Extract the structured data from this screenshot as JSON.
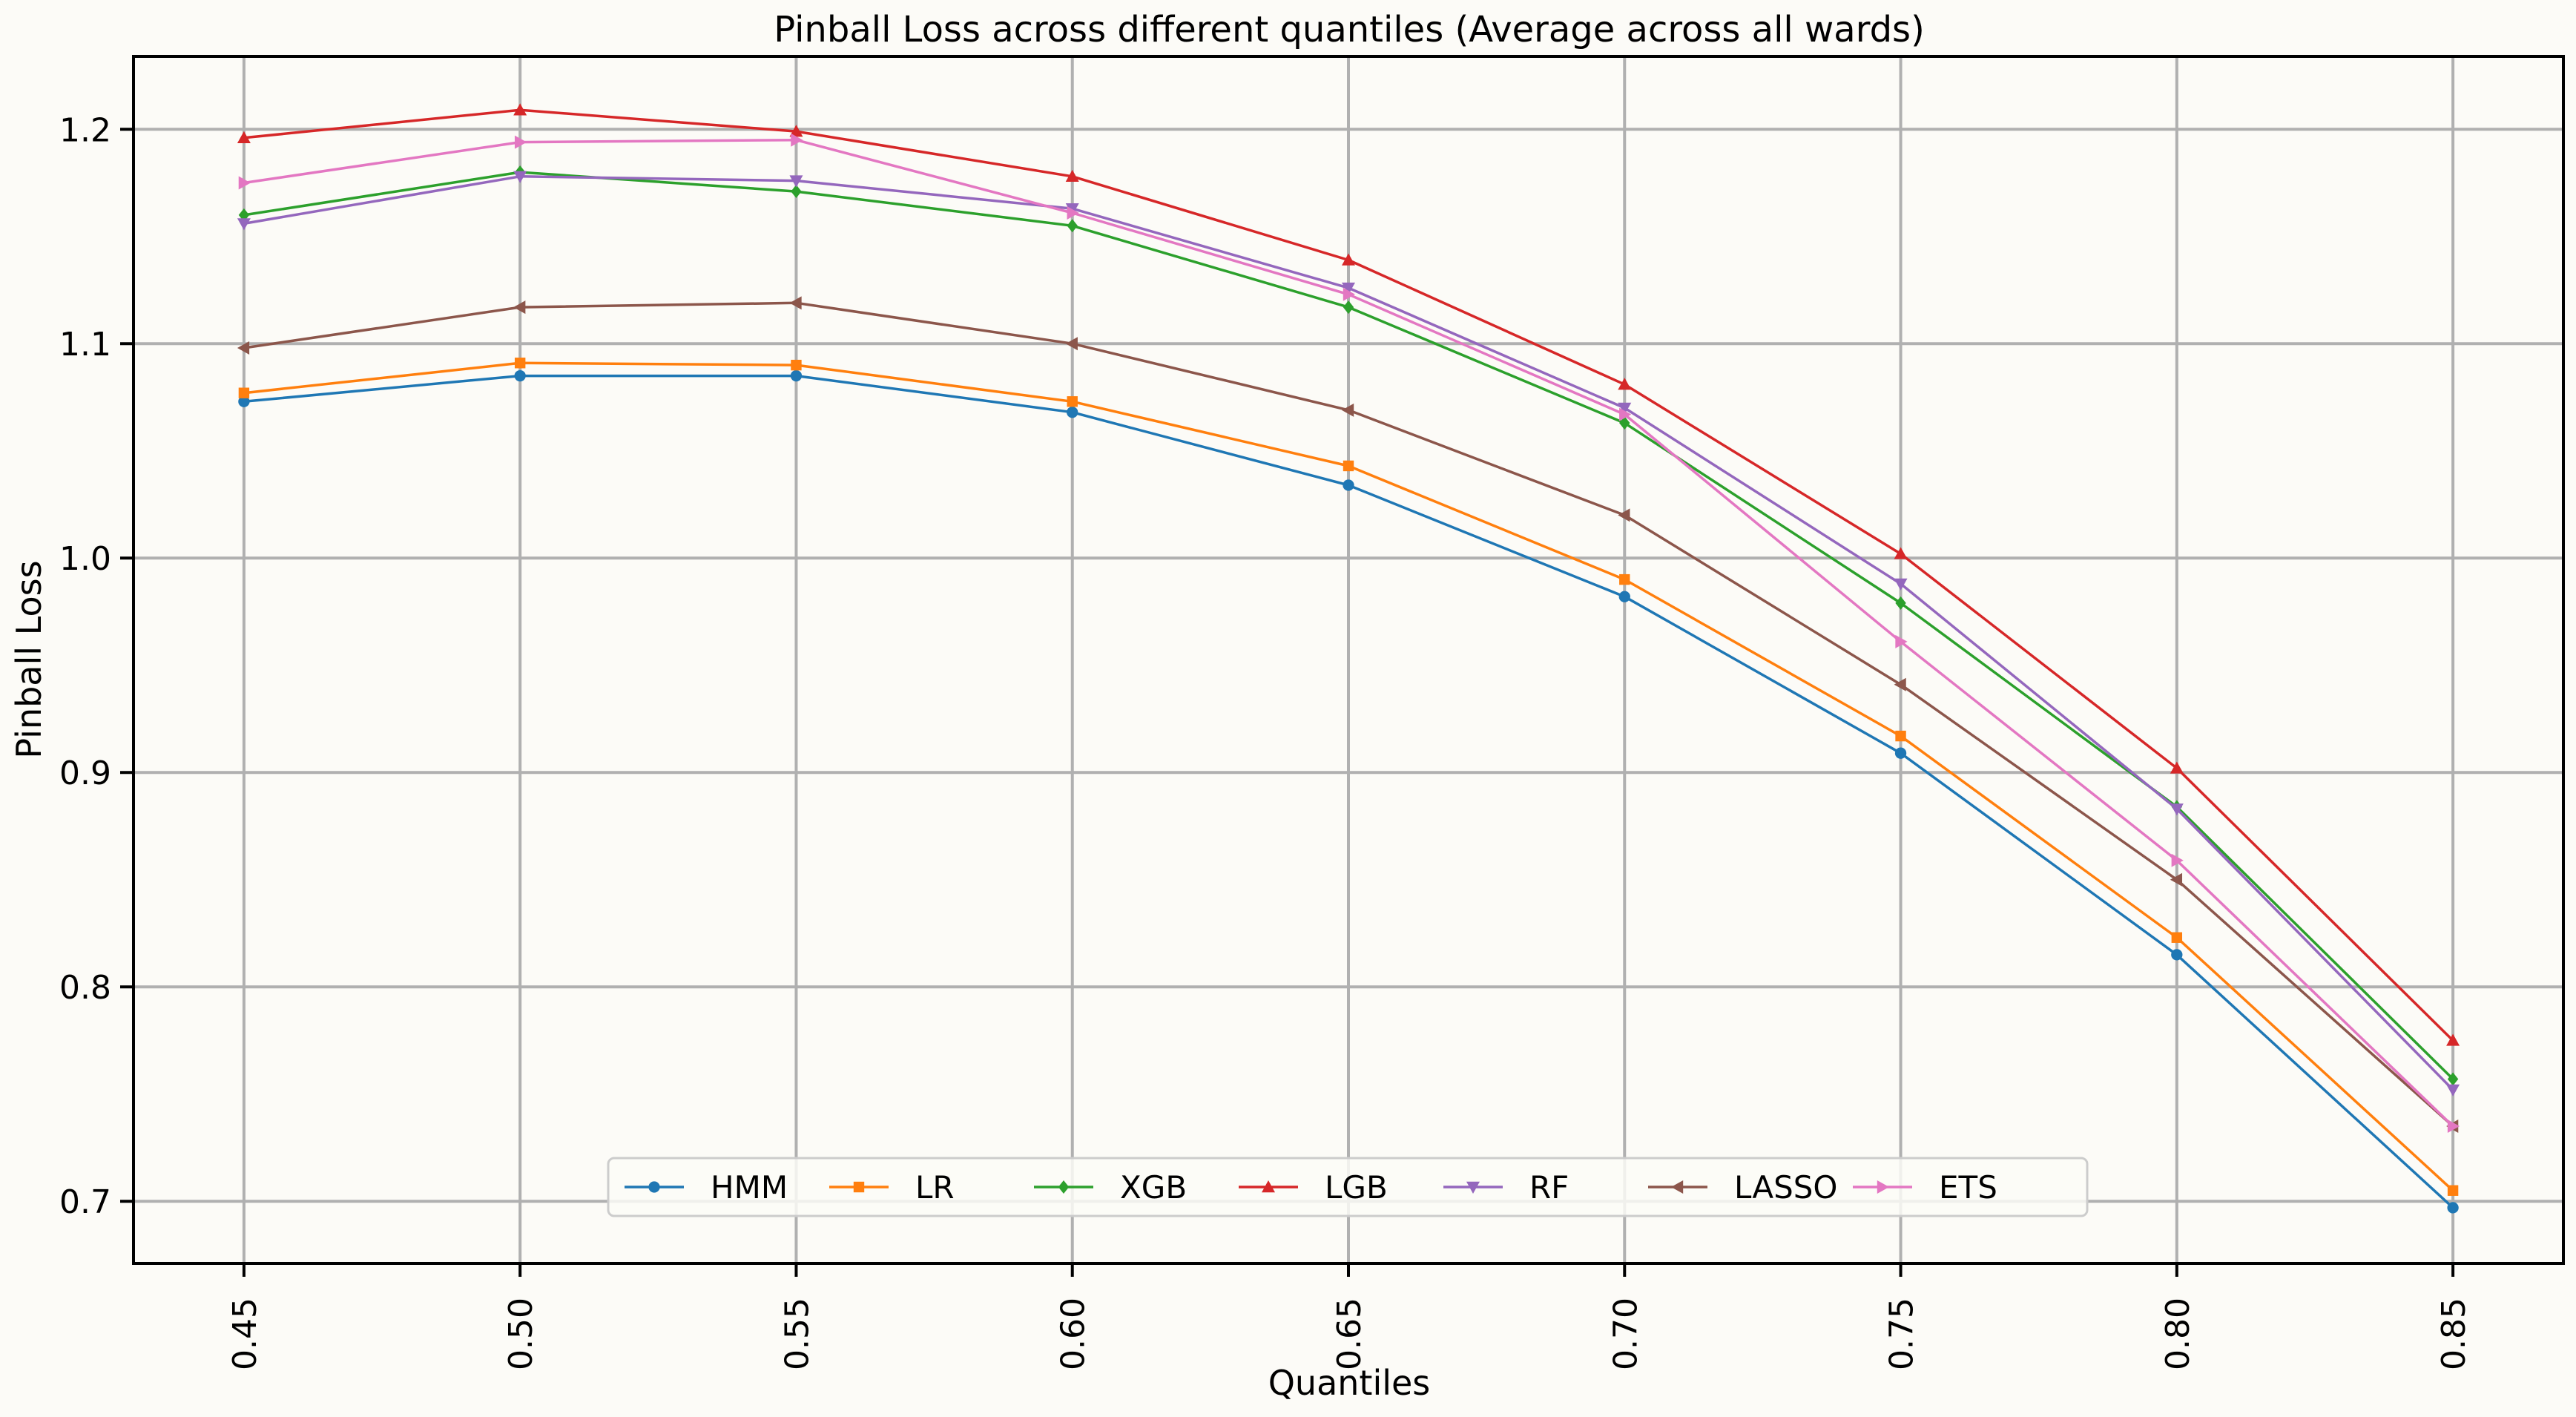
{
  "chart_data": {
    "type": "line",
    "title": "Pinball Loss across different quantiles (Average across all wards)",
    "xlabel": "Quantiles",
    "ylabel": "Pinball Loss",
    "x": [
      0.45,
      0.5,
      0.55,
      0.6,
      0.65,
      0.7,
      0.75,
      0.8,
      0.85
    ],
    "x_tick_labels": [
      "0.45",
      "0.50",
      "0.55",
      "0.60",
      "0.65",
      "0.70",
      "0.75",
      "0.80",
      "0.85"
    ],
    "y_ticks": [
      0.7,
      0.8,
      0.9,
      1.0,
      1.1,
      1.2
    ],
    "y_tick_labels": [
      "0.7",
      "0.8",
      "0.9",
      "1.0",
      "1.1",
      "1.2"
    ],
    "xlim": [
      0.43,
      0.87
    ],
    "ylim": [
      0.671,
      1.234
    ],
    "grid": true,
    "legend_placement": "lower-center",
    "series": [
      {
        "name": "HMM",
        "color": "#1f77b4",
        "marker": "circle",
        "values": [
          1.073,
          1.085,
          1.085,
          1.068,
          1.034,
          0.982,
          0.909,
          0.815,
          0.697
        ]
      },
      {
        "name": "LR",
        "color": "#ff7f0e",
        "marker": "square",
        "values": [
          1.077,
          1.091,
          1.09,
          1.073,
          1.043,
          0.99,
          0.917,
          0.823,
          0.705
        ]
      },
      {
        "name": "XGB",
        "color": "#2ca02c",
        "marker": "diamond",
        "values": [
          1.16,
          1.18,
          1.171,
          1.155,
          1.117,
          1.063,
          0.979,
          0.884,
          0.757
        ]
      },
      {
        "name": "LGB",
        "color": "#d62728",
        "marker": "triangle-up",
        "values": [
          1.196,
          1.209,
          1.199,
          1.178,
          1.139,
          1.081,
          1.002,
          0.902,
          0.775
        ]
      },
      {
        "name": "RF",
        "color": "#9467bd",
        "marker": "triangle-down",
        "values": [
          1.156,
          1.178,
          1.176,
          1.163,
          1.126,
          1.07,
          0.988,
          0.883,
          0.752
        ]
      },
      {
        "name": "LASSO",
        "color": "#8c564b",
        "marker": "triangle-left",
        "values": [
          1.098,
          1.117,
          1.119,
          1.1,
          1.069,
          1.02,
          0.941,
          0.85,
          0.735
        ]
      },
      {
        "name": "ETS",
        "color": "#e377c2",
        "marker": "triangle-right",
        "values": [
          1.175,
          1.194,
          1.195,
          1.161,
          1.123,
          1.067,
          0.961,
          0.859,
          0.735
        ]
      }
    ]
  }
}
